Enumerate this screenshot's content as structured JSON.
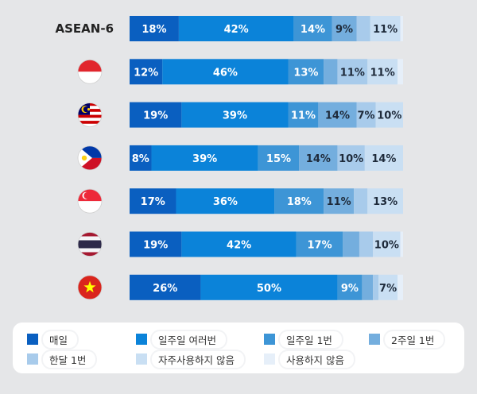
{
  "chart_data": {
    "type": "bar",
    "orientation": "horizontal",
    "stacked": true,
    "percent_stacked": true,
    "categories": [
      "ASEAN-6",
      "Indonesia",
      "Malaysia",
      "Philippines",
      "Singapore",
      "Thailand",
      "Vietnam"
    ],
    "category_labels": [
      "ASEAN-6",
      "",
      "",
      "",
      "",
      "",
      ""
    ],
    "category_flags": [
      "",
      "indonesia-flag-icon",
      "malaysia-flag-icon",
      "philippines-flag-icon",
      "singapore-flag-icon",
      "thailand-flag-icon",
      "vietnam-flag-icon"
    ],
    "series": [
      {
        "name": "매일",
        "color": "#0a5fc0",
        "values": [
          18,
          12,
          19,
          8,
          17,
          19,
          26
        ],
        "labels": [
          "18%",
          "12%",
          "19%",
          "8%",
          "17%",
          "19%",
          "26%"
        ]
      },
      {
        "name": "일주일 여러번",
        "color": "#0b83d9",
        "values": [
          42,
          46,
          39,
          39,
          36,
          42,
          50
        ],
        "labels": [
          "42%",
          "46%",
          "39%",
          "39%",
          "36%",
          "42%",
          "50%"
        ]
      },
      {
        "name": "일주일 1번",
        "color": "#3d95d6",
        "values": [
          14,
          13,
          11,
          15,
          18,
          17,
          9
        ],
        "labels": [
          "14%",
          "13%",
          "11%",
          "15%",
          "18%",
          "17%",
          "9%"
        ]
      },
      {
        "name": "2주일 1번",
        "color": "#74aede",
        "values": [
          9,
          5,
          14,
          14,
          11,
          6,
          4
        ],
        "labels": [
          "9%",
          "",
          "14%",
          "14%",
          "11%",
          "",
          ""
        ]
      },
      {
        "name": "한달 1번",
        "color": "#a8cbeb",
        "values": [
          5,
          11,
          7,
          10,
          5,
          5,
          2
        ],
        "labels": [
          "",
          "11%",
          "7%",
          "10%",
          "",
          "",
          ""
        ]
      },
      {
        "name": "자주사용하지 않음",
        "color": "#c9dff3",
        "values": [
          11,
          11,
          10,
          14,
          13,
          10,
          7
        ],
        "labels": [
          "11%",
          "11%",
          "10%",
          "14%",
          "13%",
          "10%",
          "7%"
        ]
      },
      {
        "name": "사용하지 않음",
        "color": "#e6eff9",
        "values": [
          1,
          2,
          0,
          0,
          0,
          1,
          2
        ],
        "labels": [
          "",
          "",
          "",
          "",
          "",
          "",
          ""
        ]
      }
    ],
    "xlim": [
      0,
      100
    ],
    "grid": false,
    "legend_position": "bottom"
  }
}
